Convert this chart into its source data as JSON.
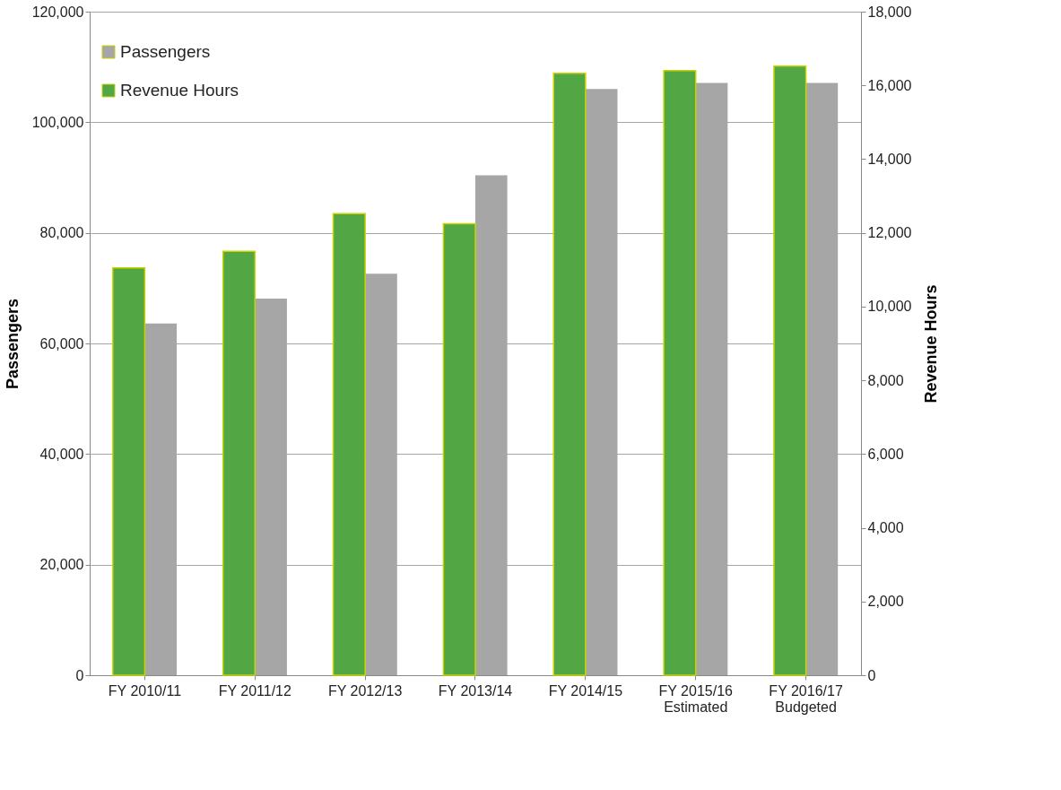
{
  "chart_data": {
    "type": "bar",
    "categories": [
      "FY 2010/11",
      "FY 2011/12",
      "FY 2012/13",
      "FY 2013/14",
      "FY 2014/15",
      "FY 2015/16\nEstimated",
      "FY 2016/17\nBudgeted"
    ],
    "series": [
      {
        "name": "Passengers",
        "color": "#a6a6a6",
        "values": [
          63600,
          68100,
          72600,
          90400,
          106000,
          107100,
          107100
        ]
      },
      {
        "name": "Revenue Hours",
        "color": "#52a744",
        "axis": "y2",
        "values": [
          11050,
          11500,
          12520,
          12250,
          16330,
          16400,
          16520
        ]
      }
    ],
    "ylabel": "Passengers",
    "y2label": "Revenue Hours",
    "ylim": [
      0,
      120000
    ],
    "yticks": [
      0,
      {
        "value": 20000,
        "label": "20,000"
      },
      {
        "value": 40000,
        "label": "40,000"
      },
      {
        "value": 60000,
        "label": "60,000"
      },
      {
        "value": 80000,
        "label": "80,000"
      },
      {
        "value": 100000,
        "label": "100,000"
      },
      {
        "value": 120000,
        "label": "120,000"
      }
    ],
    "y2lim": [
      0,
      18000
    ],
    "y2ticks": [
      0,
      {
        "value": 2000,
        "label": "2,000"
      },
      {
        "value": 4000,
        "label": "4,000"
      },
      {
        "value": 6000,
        "label": "6,000"
      },
      {
        "value": 8000,
        "label": "8,000"
      },
      {
        "value": 10000,
        "label": "10,000"
      },
      {
        "value": 12000,
        "label": "12,000"
      },
      {
        "value": 14000,
        "label": "14,000"
      },
      {
        "value": 16000,
        "label": "16,000"
      },
      {
        "value": 18000,
        "label": "18,000"
      }
    ],
    "grid": "y",
    "legend": "top left"
  }
}
